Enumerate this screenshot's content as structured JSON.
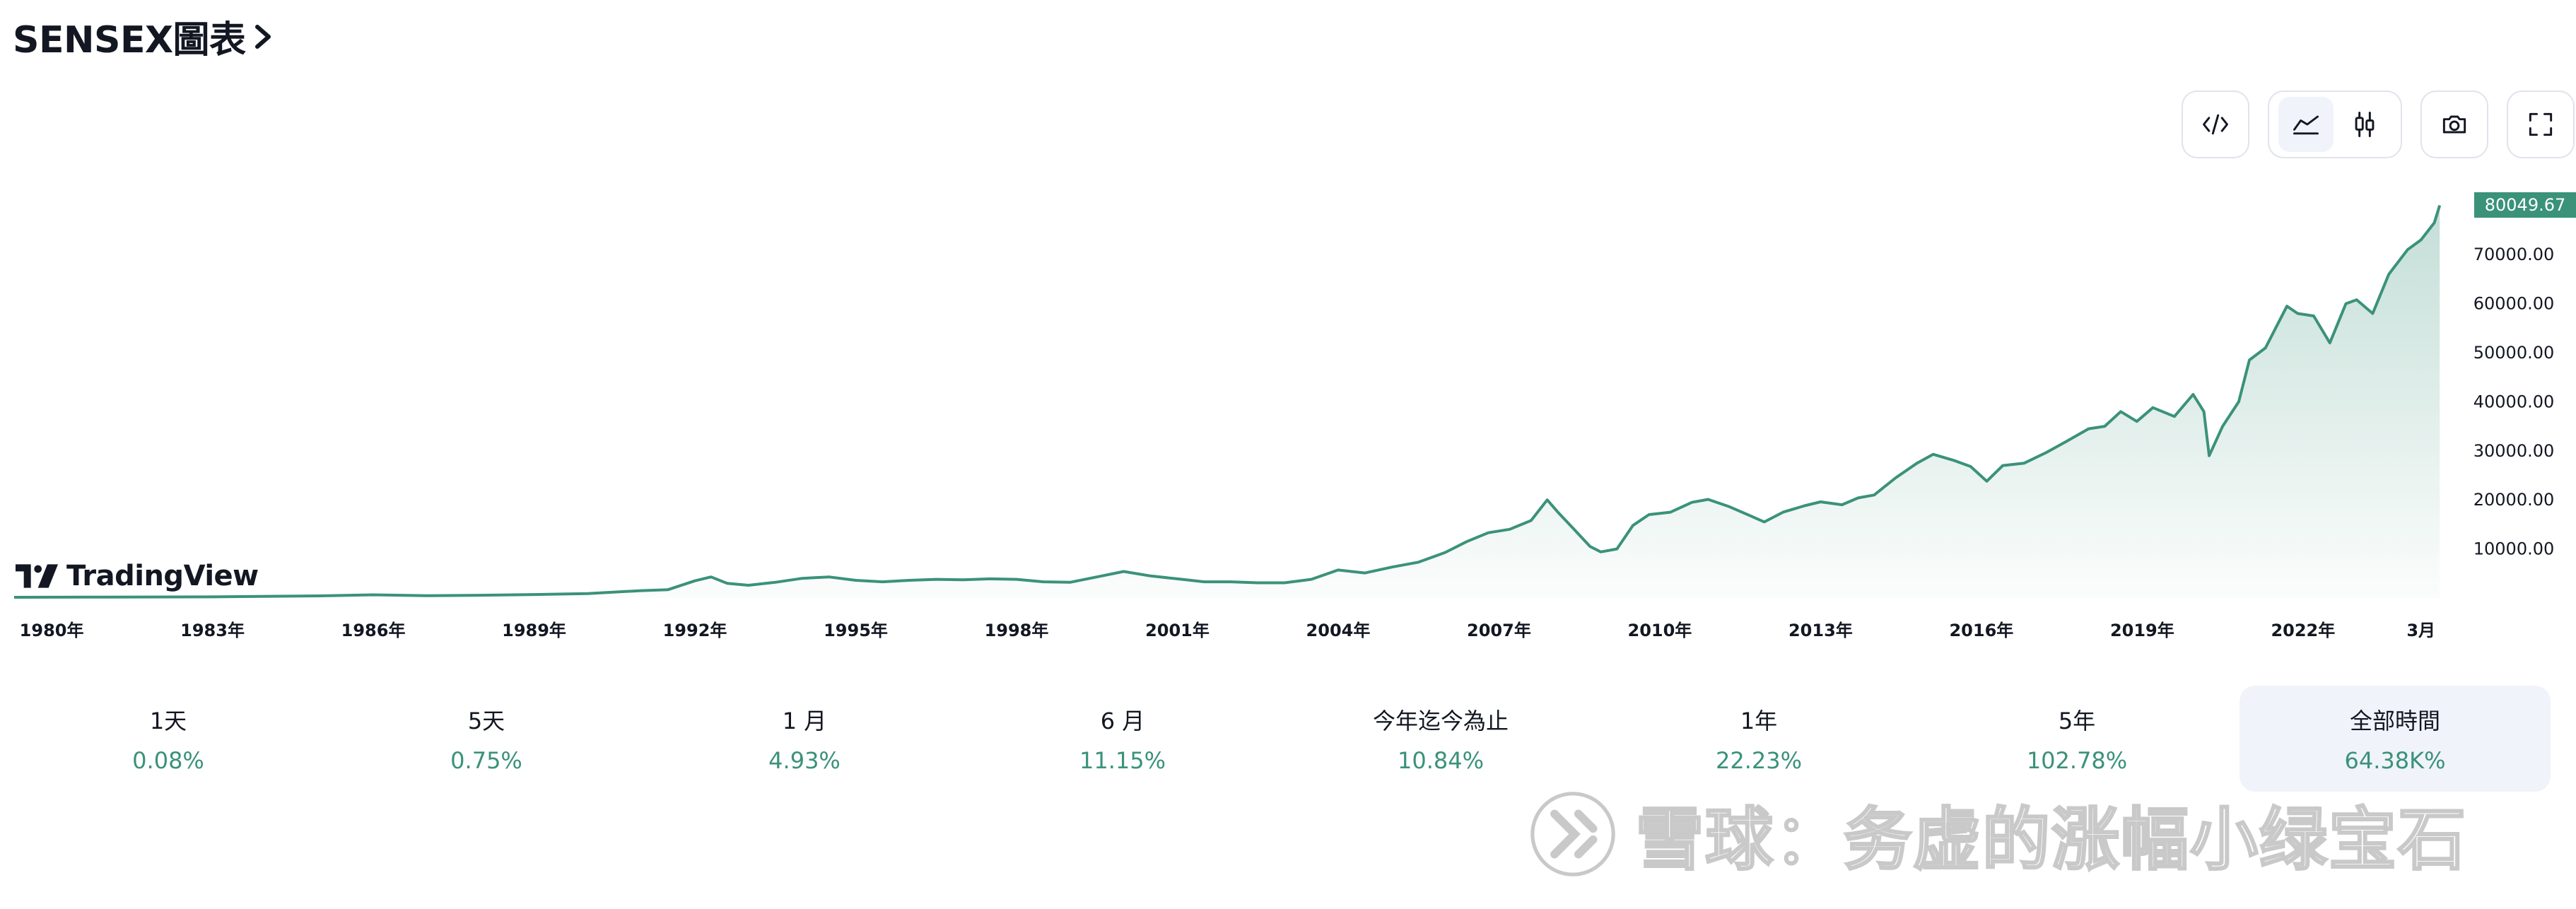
{
  "header": {
    "title": "SENSEX圖表"
  },
  "toolbar": {
    "buttons": [
      {
        "name": "embed-code-icon"
      },
      {
        "name": "area-chart-icon",
        "active": true
      },
      {
        "name": "candlestick-icon"
      },
      {
        "name": "camera-icon"
      },
      {
        "name": "fullscreen-icon"
      }
    ]
  },
  "logo": {
    "text": "TradingView"
  },
  "chart_data": {
    "type": "area",
    "title": "",
    "xlabel": "",
    "ylabel": "",
    "color": "#3a9279",
    "fill_top": "#3a9279",
    "last_value_label": "80049.67",
    "ylim": [
      0,
      83000
    ],
    "y_ticks": [
      "10000.00",
      "20000.00",
      "30000.00",
      "40000.00",
      "50000.00",
      "60000.00",
      "70000.00"
    ],
    "y_tick_values": [
      10000,
      20000,
      30000,
      40000,
      50000,
      60000,
      70000
    ],
    "x_ticks": [
      "1980年",
      "1983年",
      "1986年",
      "1989年",
      "1992年",
      "1995年",
      "1998年",
      "2001年",
      "2004年",
      "2007年",
      "2010年",
      "2013年",
      "2016年",
      "2019年",
      "2022年",
      "3月"
    ],
    "x_tick_values": [
      1980,
      1983,
      1986,
      1989,
      1992,
      1995,
      1998,
      2001,
      2004,
      2007,
      2010,
      2013,
      2016,
      2019,
      2022,
      2024.2
    ],
    "xlim": [
      1979.3,
      2024.6
    ],
    "series": [
      {
        "x": [
          1979.3,
          1981,
          1983,
          1985,
          1986,
          1987,
          1988,
          1989,
          1990,
          1991,
          1991.5,
          1992.0,
          1992.3,
          1992.6,
          1993.0,
          1993.5,
          1994.0,
          1994.5,
          1995.0,
          1995.5,
          1996.0,
          1996.5,
          1997.0,
          1997.5,
          1998.0,
          1998.5,
          1999.0,
          1999.5,
          2000.0,
          2000.5,
          2001.0,
          2001.5,
          2002.0,
          2002.5,
          2003.0,
          2003.5,
          2004.0,
          2004.5,
          2005.0,
          2005.5,
          2006.0,
          2006.4,
          2006.8,
          2007.2,
          2007.6,
          2007.9,
          2008.1,
          2008.4,
          2008.7,
          2008.9,
          2009.2,
          2009.5,
          2009.8,
          2010.2,
          2010.6,
          2010.9,
          2011.3,
          2011.7,
          2011.95,
          2012.3,
          2012.7,
          2013.0,
          2013.4,
          2013.7,
          2014.0,
          2014.4,
          2014.8,
          2015.1,
          2015.5,
          2015.8,
          2016.1,
          2016.4,
          2016.8,
          2017.2,
          2017.6,
          2018.0,
          2018.3,
          2018.6,
          2018.9,
          2019.2,
          2019.6,
          2019.95,
          2020.15,
          2020.25,
          2020.5,
          2020.8,
          2021.0,
          2021.3,
          2021.7,
          2021.9,
          2022.2,
          2022.5,
          2022.8,
          2023.0,
          2023.3,
          2023.6,
          2023.95,
          2024.2,
          2024.45,
          2024.55
        ],
        "y": [
          150,
          190,
          230,
          430,
          650,
          480,
          560,
          700,
          900,
          1500,
          1700,
          3500,
          4300,
          3000,
          2600,
          3200,
          4000,
          4300,
          3600,
          3300,
          3600,
          3800,
          3700,
          3900,
          3800,
          3300,
          3200,
          4300,
          5400,
          4500,
          3900,
          3300,
          3300,
          3100,
          3100,
          3800,
          5700,
          5100,
          6300,
          7300,
          9300,
          11500,
          13300,
          14000,
          15800,
          20000,
          17500,
          14000,
          10500,
          9400,
          10000,
          14800,
          17000,
          17500,
          19500,
          20100,
          18600,
          16700,
          15500,
          17500,
          18800,
          19600,
          19000,
          20400,
          21000,
          24500,
          27500,
          29300,
          28000,
          26800,
          23800,
          27000,
          27500,
          29600,
          32000,
          34500,
          35000,
          38000,
          36000,
          38800,
          37000,
          41500,
          38000,
          29000,
          35000,
          40000,
          48500,
          51000,
          59500,
          58000,
          57500,
          52000,
          60000,
          60800,
          58000,
          66000,
          71000,
          73000,
          76500,
          80049.67
        ]
      }
    ]
  },
  "periods": [
    {
      "label": "1天",
      "value": "0.08%"
    },
    {
      "label": "5天",
      "value": "0.75%"
    },
    {
      "label": "1 月",
      "value": "4.93%"
    },
    {
      "label": "6 月",
      "value": "11.15%"
    },
    {
      "label": "今年迄今為止",
      "value": "10.84%"
    },
    {
      "label": "1年",
      "value": "22.23%"
    },
    {
      "label": "5年",
      "value": "102.78%"
    },
    {
      "label": "全部時間",
      "value": "64.38K%",
      "active": true
    }
  ],
  "watermark": {
    "text": "雪球：务虚的涨幅小绿宝石"
  }
}
